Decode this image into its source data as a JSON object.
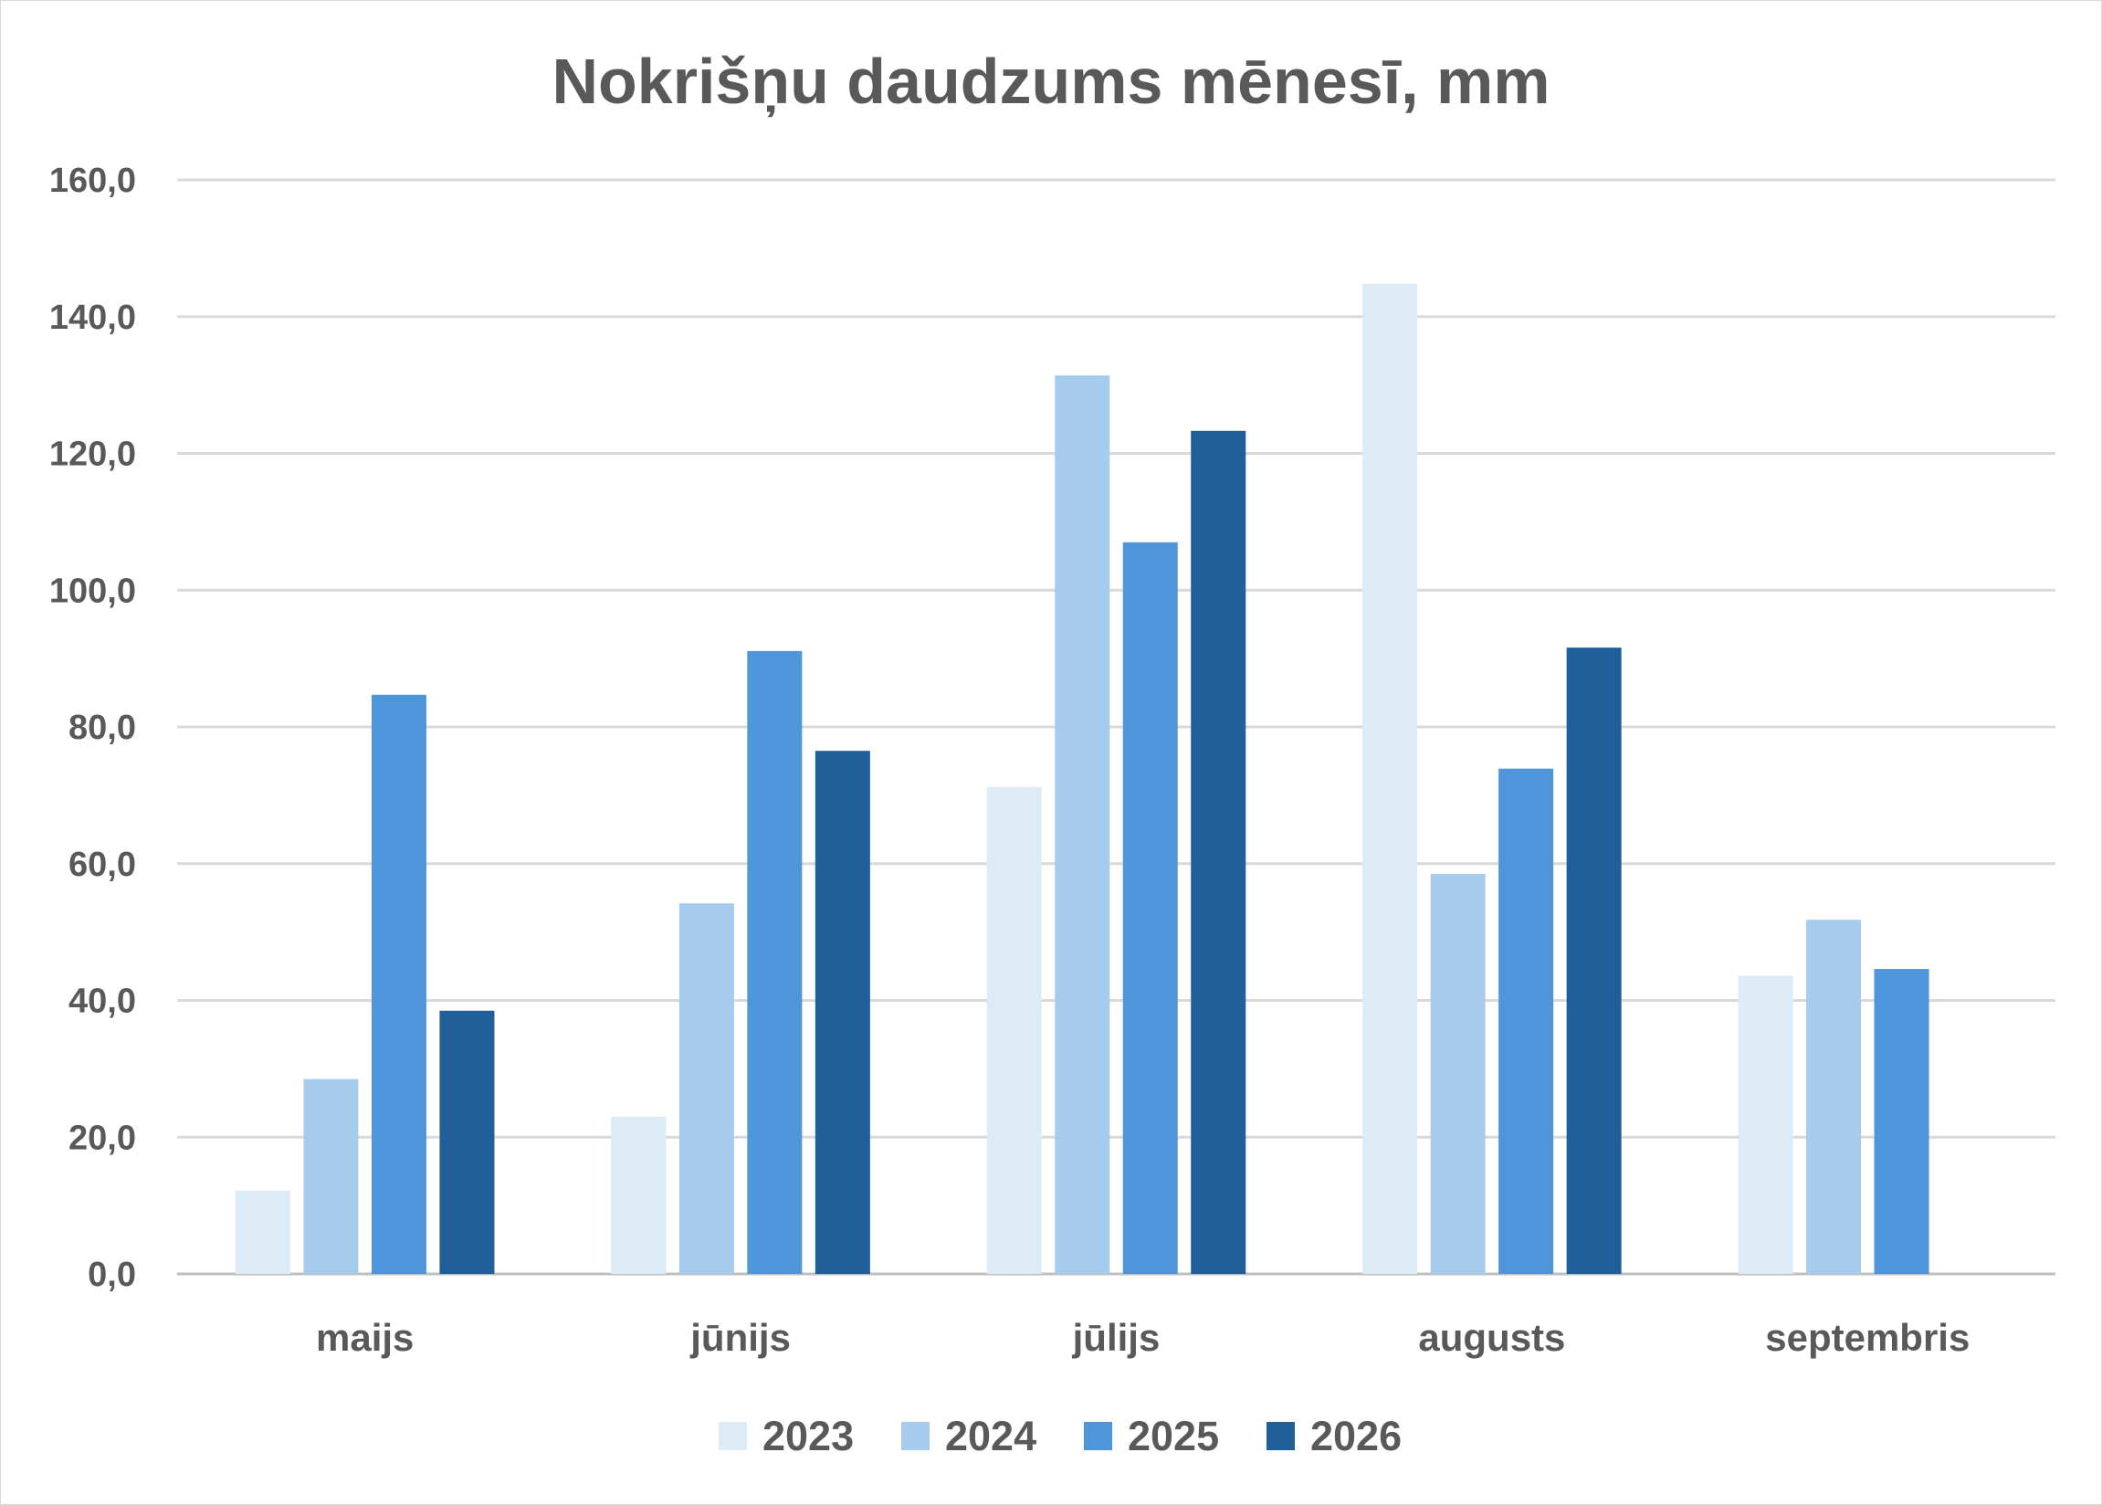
{
  "chart_data": {
    "type": "bar",
    "title": "Nokrišņu daudzums mēnesī, mm",
    "xlabel": "",
    "ylabel": "",
    "categories": [
      "maijs",
      "jūnijs",
      "jūlijs",
      "augusts",
      "septembris"
    ],
    "ylim": [
      0,
      160
    ],
    "yticks": [
      "0,0",
      "20,0",
      "40,0",
      "60,0",
      "80,0",
      "100,0",
      "120,0",
      "140,0",
      "160,0"
    ],
    "grid": true,
    "legend_position": "bottom",
    "series": [
      {
        "name": "2023",
        "color": "#ddebf7",
        "values": [
          12.2,
          23.0,
          71.2,
          144.8,
          43.6
        ]
      },
      {
        "name": "2024",
        "color": "#a7cbec",
        "values": [
          28.5,
          54.2,
          131.4,
          58.5,
          51.8
        ]
      },
      {
        "name": "2025",
        "color": "#4f95da",
        "values": [
          84.7,
          91.1,
          107.0,
          73.9,
          44.6
        ]
      },
      {
        "name": "2026",
        "color": "#215f9a",
        "values": [
          38.5,
          76.5,
          123.3,
          91.6,
          null
        ]
      }
    ]
  }
}
